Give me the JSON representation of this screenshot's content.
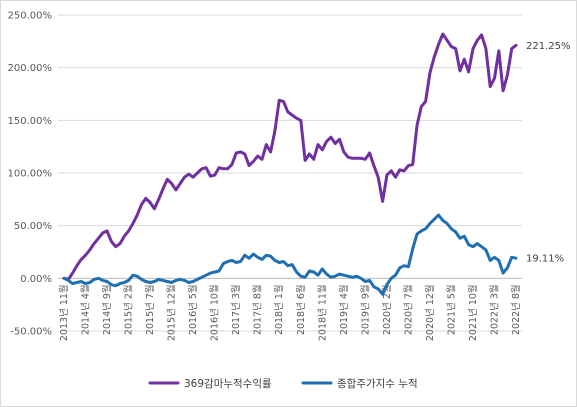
{
  "chart_data": {
    "type": "line",
    "title": "",
    "xlabel": "",
    "ylabel": "",
    "ylim": [
      -50,
      250
    ],
    "yticks": [
      "-50.00%",
      "0.00%",
      "50.00%",
      "100.00%",
      "150.00%",
      "200.00%",
      "250.00%"
    ],
    "grid": true,
    "legend_position": "bottom",
    "xtick_labels": [
      "2013년 11월",
      "2014년 4월",
      "2014년 9월",
      "2015년 2월",
      "2015년 7월",
      "2015년 12월",
      "2016년 5월",
      "2016년 10월",
      "2017년 3월",
      "2017년 8월",
      "2018년 1월",
      "2018년 6월",
      "2018년 11월",
      "2019년 4월",
      "2019년 9월",
      "2020년 2월",
      "2020년 7월",
      "2020년 12월",
      "2021년 5월",
      "2021년 10월",
      "2022년 3월",
      "2022년 8월"
    ],
    "end_labels": [
      "221.25%",
      "19.11%"
    ],
    "series": [
      {
        "name": "369감마누적수익률",
        "color": "#7030a0",
        "values": [
          [
            0,
            0
          ],
          [
            1,
            -1
          ],
          [
            2,
            5
          ],
          [
            3,
            12
          ],
          [
            4,
            18
          ],
          [
            5,
            22
          ],
          [
            6,
            27
          ],
          [
            7,
            33
          ],
          [
            8,
            38
          ],
          [
            9,
            43
          ],
          [
            10,
            45
          ],
          [
            11,
            35
          ],
          [
            12,
            30
          ],
          [
            13,
            33
          ],
          [
            14,
            40
          ],
          [
            15,
            45
          ],
          [
            16,
            52
          ],
          [
            17,
            60
          ],
          [
            18,
            70
          ],
          [
            19,
            76
          ],
          [
            20,
            72
          ],
          [
            21,
            66
          ],
          [
            22,
            75
          ],
          [
            23,
            85
          ],
          [
            24,
            94
          ],
          [
            25,
            90
          ],
          [
            26,
            84
          ],
          [
            27,
            90
          ],
          [
            28,
            96
          ],
          [
            29,
            99
          ],
          [
            30,
            96
          ],
          [
            31,
            100
          ],
          [
            32,
            104
          ],
          [
            33,
            105
          ],
          [
            34,
            97
          ],
          [
            35,
            98
          ],
          [
            36,
            105
          ],
          [
            37,
            104
          ],
          [
            38,
            104
          ],
          [
            39,
            108
          ],
          [
            40,
            119
          ],
          [
            41,
            120
          ],
          [
            42,
            118
          ],
          [
            43,
            107
          ],
          [
            44,
            111
          ],
          [
            45,
            116
          ],
          [
            46,
            113
          ],
          [
            47,
            127
          ],
          [
            48,
            120
          ],
          [
            49,
            140
          ],
          [
            50,
            169
          ],
          [
            51,
            168
          ],
          [
            52,
            158
          ],
          [
            53,
            155
          ],
          [
            54,
            152
          ],
          [
            55,
            150
          ],
          [
            56,
            112
          ],
          [
            57,
            118
          ],
          [
            58,
            113
          ],
          [
            59,
            127
          ],
          [
            60,
            122
          ],
          [
            61,
            130
          ],
          [
            62,
            134
          ],
          [
            63,
            128
          ],
          [
            64,
            132
          ],
          [
            65,
            120
          ],
          [
            66,
            115
          ],
          [
            67,
            114
          ],
          [
            68,
            114
          ],
          [
            69,
            114
          ],
          [
            70,
            113
          ],
          [
            71,
            119
          ],
          [
            72,
            107
          ],
          [
            73,
            96
          ],
          [
            74,
            73
          ],
          [
            75,
            98
          ],
          [
            76,
            102
          ],
          [
            77,
            96
          ],
          [
            78,
            103
          ],
          [
            79,
            102
          ],
          [
            80,
            107
          ],
          [
            81,
            108
          ],
          [
            82,
            145
          ],
          [
            83,
            163
          ],
          [
            84,
            168
          ],
          [
            85,
            195
          ],
          [
            86,
            210
          ],
          [
            87,
            222
          ],
          [
            88,
            232
          ],
          [
            89,
            226
          ],
          [
            90,
            220
          ],
          [
            91,
            218
          ],
          [
            92,
            197
          ],
          [
            93,
            208
          ],
          [
            94,
            196
          ],
          [
            95,
            218
          ],
          [
            96,
            226
          ],
          [
            97,
            231
          ],
          [
            98,
            218
          ],
          [
            99,
            182
          ],
          [
            100,
            190
          ],
          [
            101,
            216
          ],
          [
            102,
            178
          ],
          [
            103,
            193
          ],
          [
            104,
            218
          ],
          [
            105,
            221.25
          ]
        ]
      },
      {
        "name": "종합주가지수 누적",
        "color": "#1f6fb2",
        "values": [
          [
            0,
            0
          ],
          [
            1,
            -2
          ],
          [
            2,
            -5
          ],
          [
            3,
            -4
          ],
          [
            4,
            -3
          ],
          [
            5,
            -5
          ],
          [
            6,
            -4
          ],
          [
            7,
            -1
          ],
          [
            8,
            0
          ],
          [
            9,
            -2
          ],
          [
            10,
            -3
          ],
          [
            11,
            -6
          ],
          [
            12,
            -7
          ],
          [
            13,
            -5
          ],
          [
            14,
            -4
          ],
          [
            15,
            -2
          ],
          [
            16,
            3
          ],
          [
            17,
            2
          ],
          [
            18,
            -1
          ],
          [
            19,
            -3
          ],
          [
            20,
            -4
          ],
          [
            21,
            -3
          ],
          [
            22,
            -1
          ],
          [
            23,
            -2
          ],
          [
            24,
            -3
          ],
          [
            25,
            -4
          ],
          [
            26,
            -2
          ],
          [
            27,
            -1
          ],
          [
            28,
            -2
          ],
          [
            29,
            -4
          ],
          [
            30,
            -3
          ],
          [
            31,
            -1
          ],
          [
            32,
            1
          ],
          [
            33,
            3
          ],
          [
            34,
            5
          ],
          [
            35,
            6
          ],
          [
            36,
            7
          ],
          [
            37,
            14
          ],
          [
            38,
            16
          ],
          [
            39,
            17
          ],
          [
            40,
            15
          ],
          [
            41,
            16
          ],
          [
            42,
            22
          ],
          [
            43,
            19
          ],
          [
            44,
            23
          ],
          [
            45,
            20
          ],
          [
            46,
            18
          ],
          [
            47,
            22
          ],
          [
            48,
            21
          ],
          [
            49,
            17
          ],
          [
            50,
            15
          ],
          [
            51,
            16
          ],
          [
            52,
            12
          ],
          [
            53,
            13
          ],
          [
            54,
            6
          ],
          [
            55,
            2
          ],
          [
            56,
            1
          ],
          [
            57,
            7
          ],
          [
            58,
            6
          ],
          [
            59,
            3
          ],
          [
            60,
            9
          ],
          [
            61,
            4
          ],
          [
            62,
            1
          ],
          [
            63,
            2
          ],
          [
            64,
            4
          ],
          [
            65,
            3
          ],
          [
            66,
            2
          ],
          [
            67,
            1
          ],
          [
            68,
            2
          ],
          [
            69,
            0
          ],
          [
            70,
            -3
          ],
          [
            71,
            -2
          ],
          [
            72,
            -8
          ],
          [
            73,
            -10
          ],
          [
            74,
            -15
          ],
          [
            75,
            -6
          ],
          [
            76,
            0
          ],
          [
            77,
            3
          ],
          [
            78,
            10
          ],
          [
            79,
            12
          ],
          [
            80,
            11
          ],
          [
            81,
            28
          ],
          [
            82,
            42
          ],
          [
            83,
            45
          ],
          [
            84,
            47
          ],
          [
            85,
            52
          ],
          [
            86,
            56
          ],
          [
            87,
            60
          ],
          [
            88,
            55
          ],
          [
            89,
            52
          ],
          [
            90,
            47
          ],
          [
            91,
            44
          ],
          [
            92,
            38
          ],
          [
            93,
            40
          ],
          [
            94,
            32
          ],
          [
            95,
            30
          ],
          [
            96,
            33
          ],
          [
            97,
            30
          ],
          [
            98,
            27
          ],
          [
            99,
            17
          ],
          [
            100,
            20
          ],
          [
            101,
            17
          ],
          [
            102,
            5
          ],
          [
            103,
            10
          ],
          [
            104,
            20
          ],
          [
            105,
            19.11
          ]
        ]
      }
    ]
  }
}
